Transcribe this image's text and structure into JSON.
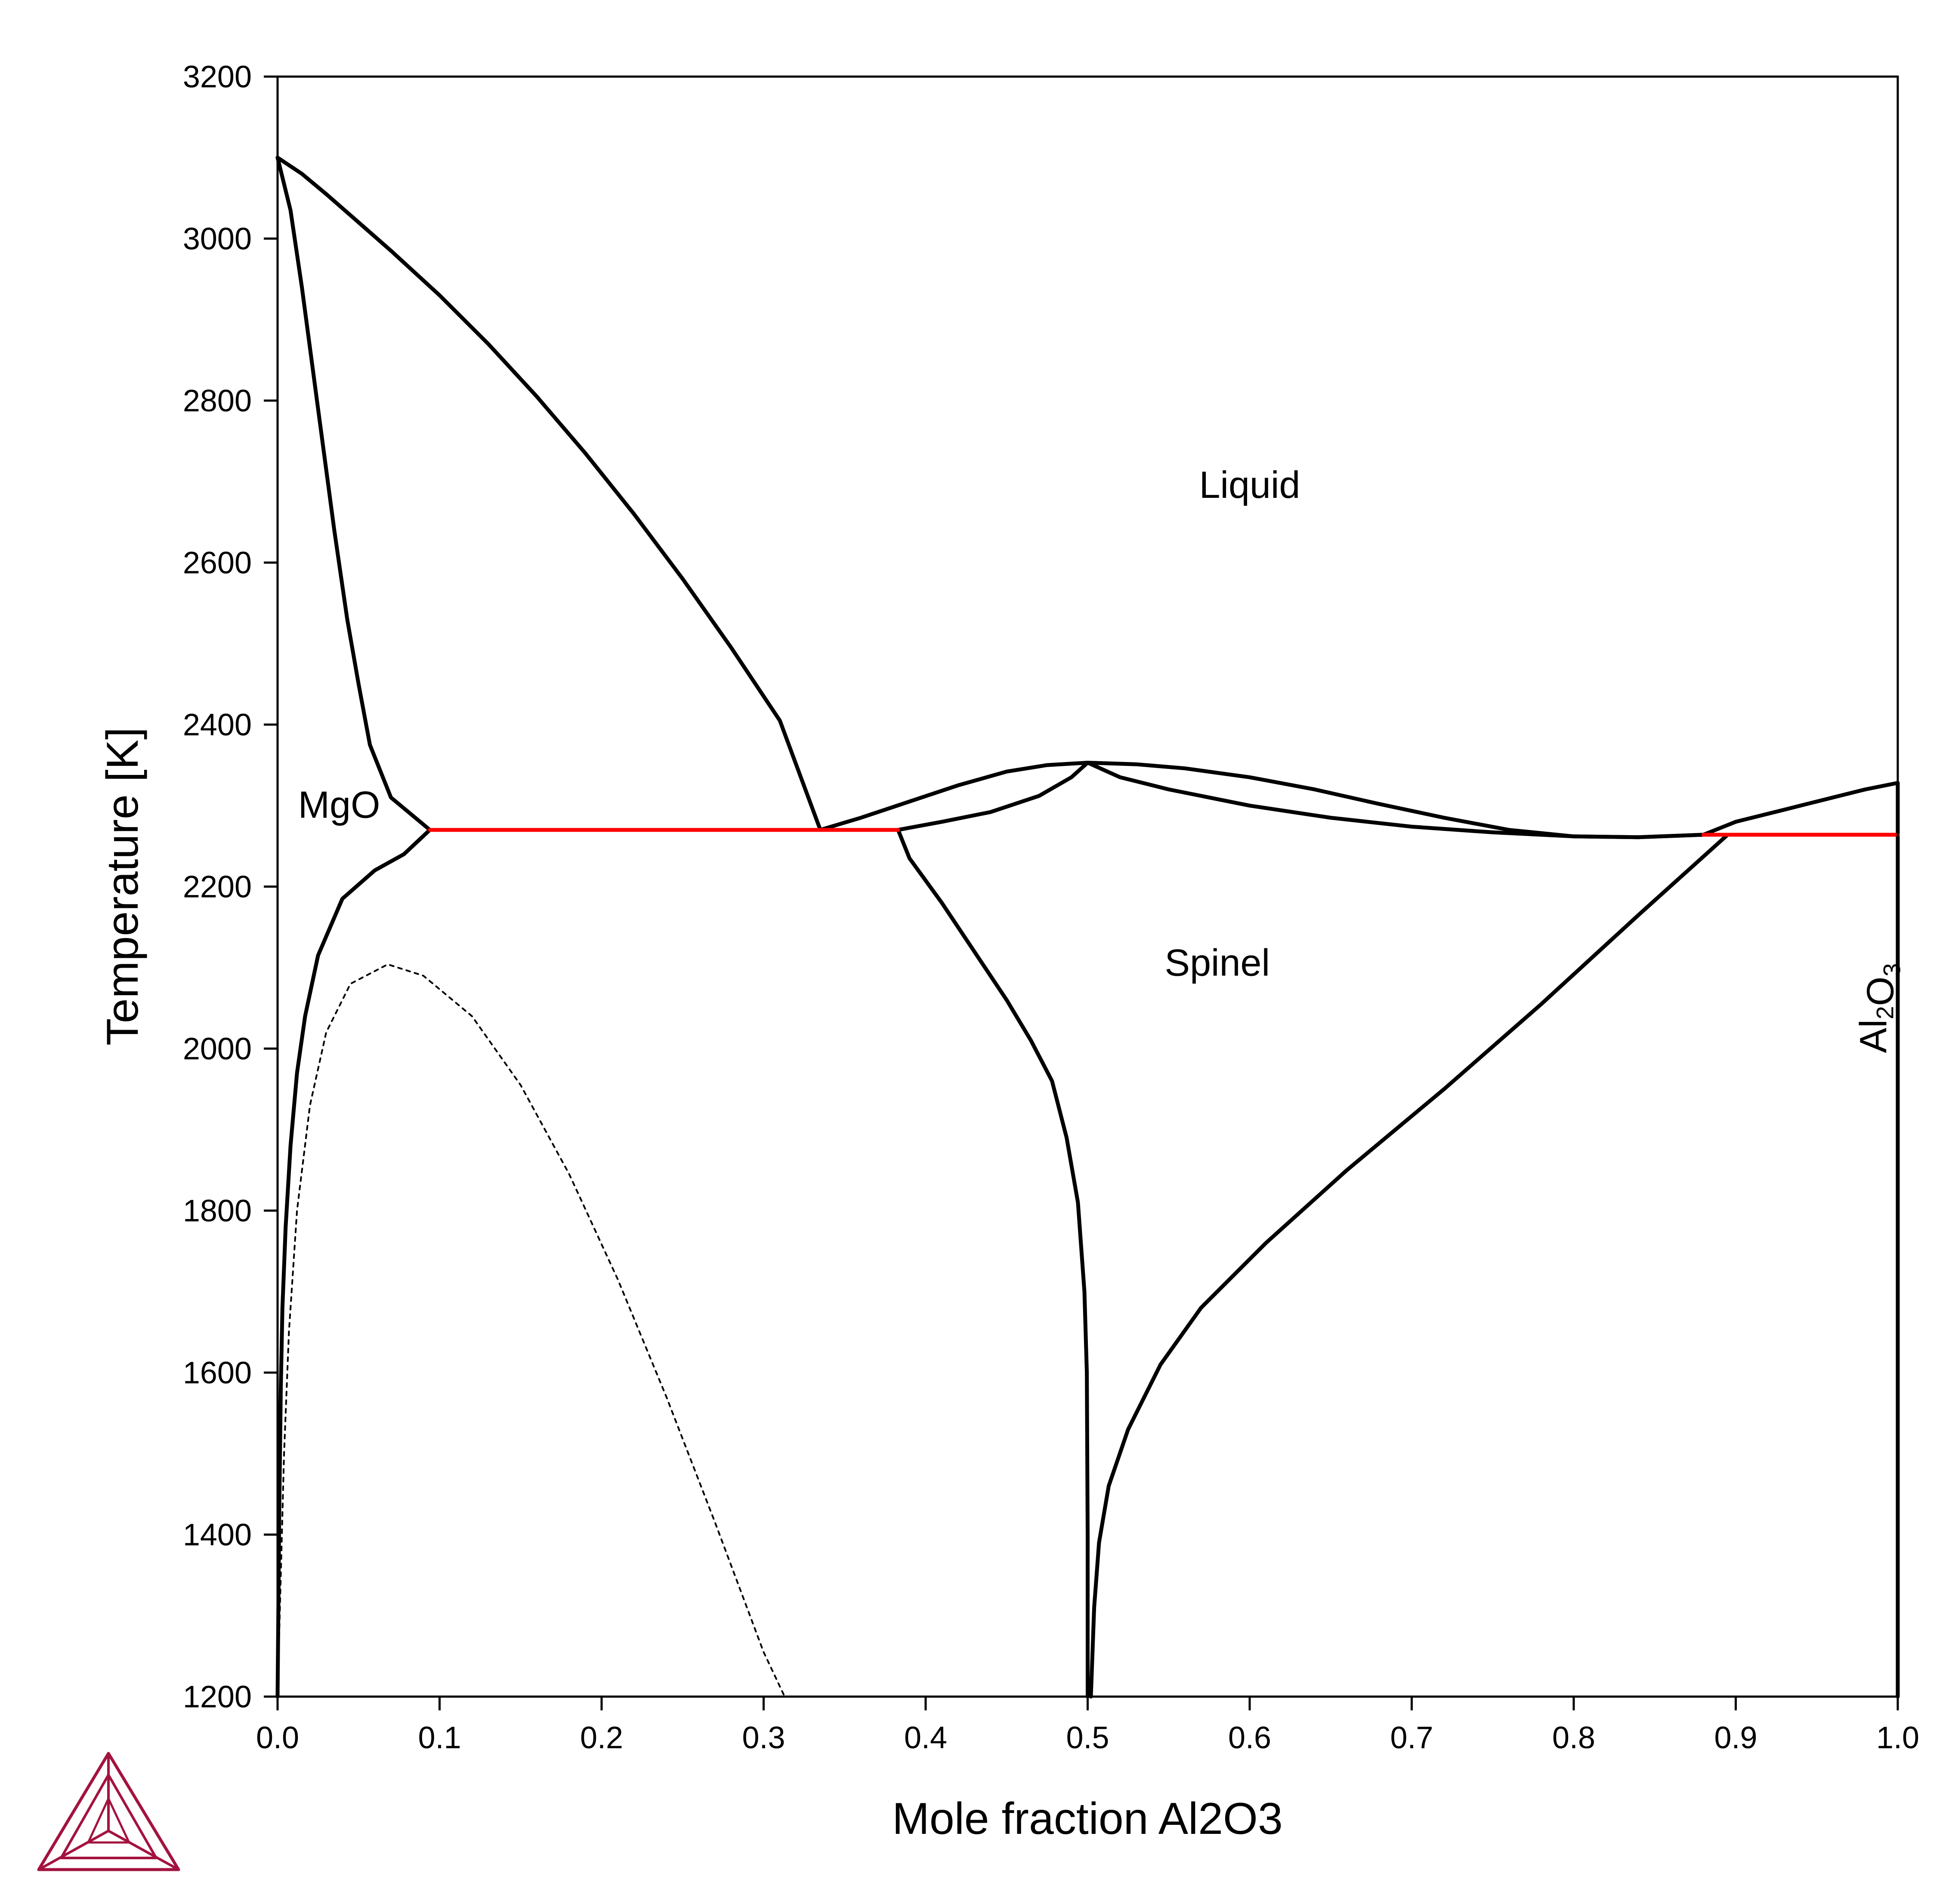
{
  "chart_data": {
    "type": "line",
    "title": "",
    "xlabel": "Mole fraction Al2O3",
    "ylabel": "Temperature [K]",
    "xlim": [
      0.0,
      1.0
    ],
    "ylim": [
      1200,
      3200
    ],
    "xticks": [
      "0.0",
      "0.1",
      "0.2",
      "0.3",
      "0.4",
      "0.5",
      "0.6",
      "0.7",
      "0.8",
      "0.9",
      "1.0"
    ],
    "yticks": [
      "1200",
      "1400",
      "1600",
      "1800",
      "2000",
      "2200",
      "2400",
      "2600",
      "2800",
      "3000",
      "3200"
    ],
    "grid": false,
    "legend": "none",
    "region_labels": [
      {
        "text": "Liquid",
        "x": 0.6,
        "y": 2680
      },
      {
        "text": "MgO",
        "x": 0.038,
        "y": 2285
      },
      {
        "text": "Spinel",
        "x": 0.58,
        "y": 2090
      },
      {
        "text": "Al2O3",
        "text_main": "Al",
        "sub1": "2",
        "mid": "O",
        "sub2": "3",
        "x": 0.985,
        "y": 2050,
        "rotation": -90
      }
    ],
    "series": [
      {
        "style": "solid",
        "color": "#000000",
        "points": [
          [
            0.0,
            3100
          ],
          [
            0.015,
            3080
          ],
          [
            0.03,
            3055
          ],
          [
            0.05,
            3020
          ],
          [
            0.07,
            2985
          ],
          [
            0.1,
            2930
          ],
          [
            0.13,
            2870
          ],
          [
            0.16,
            2805
          ],
          [
            0.19,
            2735
          ],
          [
            0.22,
            2660
          ],
          [
            0.25,
            2580
          ],
          [
            0.28,
            2495
          ],
          [
            0.31,
            2405
          ],
          [
            0.335,
            2270
          ]
        ]
      },
      {
        "style": "solid",
        "color": "#000000",
        "points": [
          [
            0.0,
            3100
          ],
          [
            0.008,
            3035
          ],
          [
            0.015,
            2940
          ],
          [
            0.025,
            2790
          ],
          [
            0.035,
            2640
          ],
          [
            0.043,
            2530
          ],
          [
            0.05,
            2450
          ],
          [
            0.057,
            2375
          ],
          [
            0.07,
            2310
          ],
          [
            0.094,
            2270
          ]
        ]
      },
      {
        "style": "solid",
        "color": "#000000",
        "points": [
          [
            0.094,
            2270
          ],
          [
            0.078,
            2240
          ],
          [
            0.06,
            2220
          ],
          [
            0.04,
            2185
          ],
          [
            0.025,
            2115
          ],
          [
            0.017,
            2040
          ],
          [
            0.012,
            1970
          ],
          [
            0.008,
            1880
          ],
          [
            0.005,
            1780
          ],
          [
            0.003,
            1680
          ],
          [
            0.002,
            1580
          ],
          [
            0.001,
            1420
          ],
          [
            0.0,
            1200
          ]
        ]
      },
      {
        "style": "dotted",
        "color": "#000000",
        "points": [
          [
            0.0,
            1200
          ],
          [
            0.002,
            1350
          ],
          [
            0.004,
            1500
          ],
          [
            0.007,
            1650
          ],
          [
            0.012,
            1800
          ],
          [
            0.02,
            1930
          ],
          [
            0.03,
            2020
          ],
          [
            0.045,
            2080
          ],
          [
            0.068,
            2104
          ],
          [
            0.09,
            2090
          ],
          [
            0.12,
            2040
          ],
          [
            0.15,
            1955
          ],
          [
            0.18,
            1845
          ],
          [
            0.21,
            1715
          ],
          [
            0.24,
            1570
          ],
          [
            0.27,
            1415
          ],
          [
            0.3,
            1255
          ],
          [
            0.313,
            1200
          ]
        ]
      },
      {
        "style": "solid",
        "color": "#000000",
        "points": [
          [
            0.335,
            2270
          ],
          [
            0.36,
            2285
          ],
          [
            0.39,
            2305
          ],
          [
            0.42,
            2325
          ],
          [
            0.45,
            2342
          ],
          [
            0.475,
            2350
          ],
          [
            0.5,
            2353
          ],
          [
            0.53,
            2351
          ],
          [
            0.56,
            2346
          ],
          [
            0.6,
            2335
          ],
          [
            0.64,
            2320
          ],
          [
            0.68,
            2302
          ],
          [
            0.72,
            2285
          ],
          [
            0.76,
            2270
          ],
          [
            0.8,
            2262
          ],
          [
            0.84,
            2261
          ],
          [
            0.88,
            2264
          ]
        ]
      },
      {
        "style": "solid",
        "color": "#000000",
        "points": [
          [
            0.383,
            2270
          ],
          [
            0.41,
            2280
          ],
          [
            0.44,
            2292
          ],
          [
            0.47,
            2312
          ],
          [
            0.49,
            2335
          ],
          [
            0.5,
            2353
          ],
          [
            0.52,
            2335
          ],
          [
            0.55,
            2320
          ],
          [
            0.6,
            2300
          ],
          [
            0.65,
            2285
          ],
          [
            0.7,
            2274
          ],
          [
            0.75,
            2267
          ],
          [
            0.8,
            2262
          ],
          [
            0.84,
            2261
          ],
          [
            0.88,
            2264
          ]
        ]
      },
      {
        "style": "solid",
        "color": "#000000",
        "points": [
          [
            0.88,
            2264
          ],
          [
            0.9,
            2280
          ],
          [
            0.93,
            2295
          ],
          [
            0.96,
            2310
          ],
          [
            0.98,
            2320
          ],
          [
            1.0,
            2328
          ]
        ]
      },
      {
        "style": "solid",
        "color": "#000000",
        "points": [
          [
            0.383,
            2270
          ],
          [
            0.39,
            2235
          ],
          [
            0.41,
            2180
          ],
          [
            0.43,
            2120
          ],
          [
            0.45,
            2060
          ],
          [
            0.465,
            2010
          ],
          [
            0.478,
            1960
          ],
          [
            0.487,
            1890
          ],
          [
            0.494,
            1810
          ],
          [
            0.498,
            1700
          ],
          [
            0.4995,
            1600
          ],
          [
            0.5,
            1400
          ],
          [
            0.5,
            1200
          ]
        ]
      },
      {
        "style": "solid",
        "color": "#000000",
        "points": [
          [
            0.502,
            1200
          ],
          [
            0.504,
            1310
          ],
          [
            0.507,
            1390
          ],
          [
            0.513,
            1460
          ],
          [
            0.525,
            1530
          ],
          [
            0.545,
            1610
          ],
          [
            0.57,
            1680
          ],
          [
            0.61,
            1760
          ],
          [
            0.66,
            1850
          ],
          [
            0.72,
            1950
          ],
          [
            0.78,
            2055
          ],
          [
            0.84,
            2165
          ],
          [
            0.895,
            2264
          ]
        ]
      },
      {
        "style": "solid",
        "color": "#000000",
        "points": [
          [
            1.0,
            1200
          ],
          [
            1.0,
            2328
          ]
        ]
      },
      {
        "style": "solid",
        "color": "#ff0000",
        "points": [
          [
            0.094,
            2270
          ],
          [
            0.383,
            2270
          ]
        ]
      },
      {
        "style": "solid",
        "color": "#ff0000",
        "points": [
          [
            0.88,
            2264
          ],
          [
            1.0,
            2264
          ]
        ]
      }
    ]
  },
  "logo": {
    "icon": "thermo-calc-triangle-logo",
    "color": "#a3133f"
  }
}
